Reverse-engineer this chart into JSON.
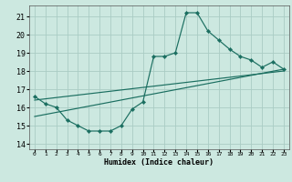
{
  "title": "",
  "xlabel": "Humidex (Indice chaleur)",
  "bg_color": "#cce8e0",
  "grid_color": "#aaccc4",
  "line_color": "#1a6e60",
  "xlim": [
    -0.5,
    23.5
  ],
  "ylim": [
    13.7,
    21.6
  ],
  "xticks": [
    0,
    1,
    2,
    3,
    4,
    5,
    6,
    7,
    8,
    9,
    10,
    11,
    12,
    13,
    14,
    15,
    16,
    17,
    18,
    19,
    20,
    21,
    22,
    23
  ],
  "yticks": [
    14,
    15,
    16,
    17,
    18,
    19,
    20,
    21
  ],
  "main_x": [
    0,
    1,
    2,
    3,
    4,
    5,
    6,
    7,
    8,
    9,
    10,
    11,
    12,
    13,
    14,
    15,
    16,
    17,
    18,
    19,
    20,
    21,
    22,
    23
  ],
  "main_y": [
    16.6,
    16.2,
    16.0,
    15.3,
    15.0,
    14.7,
    14.7,
    14.7,
    15.0,
    15.9,
    16.3,
    18.8,
    18.8,
    19.0,
    21.2,
    21.2,
    20.2,
    19.7,
    19.2,
    18.8,
    18.6,
    18.2,
    18.5,
    18.1
  ],
  "trend1_x": [
    0,
    23
  ],
  "trend1_y": [
    15.5,
    18.1
  ],
  "trend2_x": [
    0,
    23
  ],
  "trend2_y": [
    16.4,
    18.0
  ]
}
